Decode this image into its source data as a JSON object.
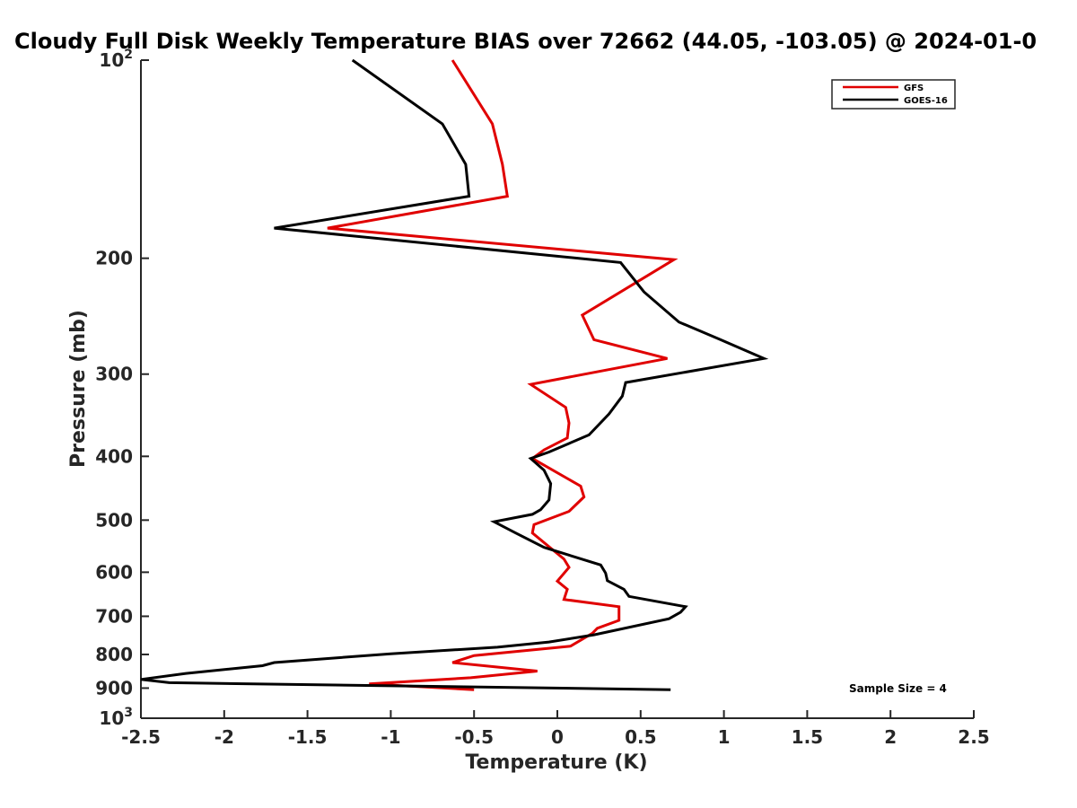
{
  "chart_data": {
    "type": "line",
    "title": "Cloudy Full Disk Weekly Temperature BIAS over 72662 (44.05, -103.05) @ 2024-01-0",
    "xlabel": "Temperature (K)",
    "ylabel": "Pressure (mb)",
    "xlim": [
      -2.5,
      2.5
    ],
    "ylim": [
      100,
      1000
    ],
    "y_scale": "log",
    "y_reversed": true,
    "grid": false,
    "legend_position": "top-right",
    "x_ticks": [
      "-2.5",
      "-2",
      "-1.5",
      "-1",
      "-0.5",
      "0",
      "0.5",
      "1",
      "1.5",
      "2",
      "2.5"
    ],
    "x_tick_values": [
      -2.5,
      -2,
      -1.5,
      -1,
      -0.5,
      0,
      0.5,
      1,
      1.5,
      2,
      2.5
    ],
    "y_tick_values": [
      100,
      200,
      300,
      400,
      500,
      600,
      700,
      800,
      900,
      1000
    ],
    "y_ticks": [
      {
        "base": "10",
        "exp": "2"
      },
      {
        "base": "200",
        "exp": ""
      },
      {
        "base": "300",
        "exp": ""
      },
      {
        "base": "400",
        "exp": ""
      },
      {
        "base": "500",
        "exp": ""
      },
      {
        "base": "600",
        "exp": ""
      },
      {
        "base": "700",
        "exp": ""
      },
      {
        "base": "800",
        "exp": ""
      },
      {
        "base": "900",
        "exp": ""
      },
      {
        "base": "10",
        "exp": "3"
      }
    ],
    "series": [
      {
        "name": "GFS",
        "color": "#e00000",
        "points": [
          [
            -0.63,
            100
          ],
          [
            -0.39,
            125
          ],
          [
            -0.33,
            144
          ],
          [
            -0.3,
            161
          ],
          [
            -1.38,
            180
          ],
          [
            0.7,
            201
          ],
          [
            0.15,
            244
          ],
          [
            0.22,
            266
          ],
          [
            0.66,
            284
          ],
          [
            -0.16,
            311
          ],
          [
            0.05,
            337
          ],
          [
            0.07,
            356
          ],
          [
            0.06,
            375
          ],
          [
            -0.08,
            391
          ],
          [
            -0.15,
            403
          ],
          [
            0.14,
            444
          ],
          [
            0.16,
            461
          ],
          [
            0.07,
            485
          ],
          [
            -0.14,
            508
          ],
          [
            -0.15,
            523
          ],
          [
            0.04,
            573
          ],
          [
            0.07,
            590
          ],
          [
            0.0,
            619
          ],
          [
            0.06,
            637
          ],
          [
            0.04,
            660
          ],
          [
            0.37,
            677
          ],
          [
            0.37,
            710
          ],
          [
            0.24,
            730
          ],
          [
            0.21,
            743
          ],
          [
            0.08,
            777
          ],
          [
            -0.5,
            803
          ],
          [
            -0.63,
            823
          ],
          [
            -0.12,
            848
          ],
          [
            -0.52,
            868
          ],
          [
            -1.13,
            887
          ],
          [
            -0.5,
            905
          ]
        ]
      },
      {
        "name": "GOES-16",
        "color": "#000000",
        "points": [
          [
            -1.23,
            100
          ],
          [
            -0.69,
            125
          ],
          [
            -0.55,
            144
          ],
          [
            -0.53,
            161
          ],
          [
            -1.7,
            180
          ],
          [
            0.38,
            203
          ],
          [
            0.52,
            225
          ],
          [
            0.73,
            250
          ],
          [
            0.98,
            266
          ],
          [
            1.24,
            284
          ],
          [
            0.41,
            309
          ],
          [
            0.39,
            324
          ],
          [
            0.31,
            345
          ],
          [
            0.19,
            371
          ],
          [
            -0.05,
            394
          ],
          [
            -0.16,
            403
          ],
          [
            -0.08,
            420
          ],
          [
            -0.04,
            440
          ],
          [
            -0.05,
            466
          ],
          [
            -0.1,
            482
          ],
          [
            -0.15,
            490
          ],
          [
            -0.38,
            503
          ],
          [
            -0.25,
            523
          ],
          [
            -0.08,
            550
          ],
          [
            0.26,
            585
          ],
          [
            0.29,
            602
          ],
          [
            0.3,
            618
          ],
          [
            0.4,
            637
          ],
          [
            0.43,
            653
          ],
          [
            0.77,
            677
          ],
          [
            0.74,
            690
          ],
          [
            0.67,
            706
          ],
          [
            0.22,
            747
          ],
          [
            -0.05,
            766
          ],
          [
            -0.36,
            780
          ],
          [
            -1.0,
            798
          ],
          [
            -1.7,
            823
          ],
          [
            -1.77,
            832
          ],
          [
            -2.23,
            855
          ],
          [
            -2.5,
            873
          ],
          [
            -2.33,
            883
          ],
          [
            0.68,
            905
          ]
        ]
      }
    ],
    "annotation": "Sample Size = 4"
  }
}
